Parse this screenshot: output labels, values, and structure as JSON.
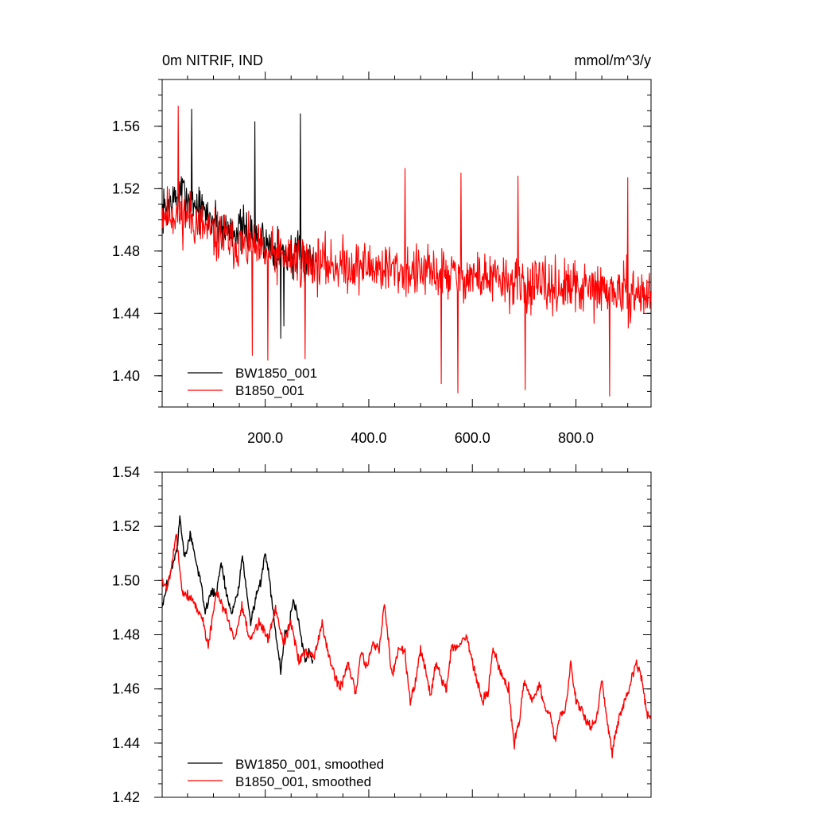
{
  "chart_data": [
    {
      "type": "line",
      "title_left": "0m NITRIF, IND",
      "title_right": "mmol/m^3/y",
      "xlim": [
        1,
        945
      ],
      "ylim": [
        1.38,
        1.59
      ],
      "x_ticks": [
        200,
        400,
        600,
        800
      ],
      "x_tick_labels": [
        "200.0",
        "400.0",
        "600.0",
        "800.0"
      ],
      "y_ticks": [
        1.4,
        1.44,
        1.48,
        1.52,
        1.56
      ],
      "y_tick_labels": [
        "1.40",
        "1.44",
        "1.48",
        "1.52",
        "1.56"
      ],
      "legend_position": "bottom-left",
      "series": [
        {
          "name": "BW1850_001",
          "color": "#000000",
          "x_range": [
            1,
            292
          ],
          "anchors": [
            [
              1,
              1.505
            ],
            [
              40,
              1.518
            ],
            [
              80,
              1.505
            ],
            [
              120,
              1.495
            ],
            [
              160,
              1.493
            ],
            [
              200,
              1.486
            ],
            [
              240,
              1.478
            ],
            [
              292,
              1.474
            ]
          ],
          "noise": 0.021,
          "seed": 7,
          "spikes": [
            [
              58,
              1.571
            ],
            [
              180,
              1.563
            ],
            [
              268,
              1.568
            ],
            [
              230,
              1.424
            ],
            [
              236,
              1.432
            ]
          ]
        },
        {
          "name": "B1850_001",
          "color": "#ff0000",
          "x_range": [
            1,
            945
          ],
          "anchors": [
            [
              1,
              1.505
            ],
            [
              50,
              1.503
            ],
            [
              100,
              1.49
            ],
            [
              200,
              1.478
            ],
            [
              300,
              1.472
            ],
            [
              400,
              1.47
            ],
            [
              500,
              1.466
            ],
            [
              600,
              1.464
            ],
            [
              700,
              1.458
            ],
            [
              800,
              1.456
            ],
            [
              945,
              1.452
            ]
          ],
          "noise": 0.025,
          "seed": 11,
          "spikes": [
            [
              32,
              1.573
            ],
            [
              175,
              1.413
            ],
            [
              205,
              1.41
            ],
            [
              277,
              1.411
            ],
            [
              540,
              1.395
            ],
            [
              572,
              1.389
            ],
            [
              702,
              1.391
            ],
            [
              865,
              1.387
            ],
            [
              470,
              1.533
            ],
            [
              578,
              1.53
            ],
            [
              688,
              1.528
            ],
            [
              900,
              1.527
            ]
          ]
        }
      ]
    },
    {
      "type": "line",
      "xlim": [
        1,
        945
      ],
      "ylim": [
        1.42,
        1.54
      ],
      "x_ticks": [
        200,
        400,
        600,
        800
      ],
      "y_ticks": [
        1.42,
        1.44,
        1.46,
        1.48,
        1.5,
        1.52,
        1.54
      ],
      "y_tick_labels": [
        "1.42",
        "1.44",
        "1.46",
        "1.48",
        "1.50",
        "1.52",
        "1.54"
      ],
      "legend_position": "bottom-left",
      "series": [
        {
          "name": "BW1850_001, smoothed",
          "color": "#000000",
          "x_range": [
            1,
            292
          ],
          "points": [
            [
              1,
              1.49
            ],
            [
              10,
              1.498
            ],
            [
              20,
              1.505
            ],
            [
              30,
              1.512
            ],
            [
              35,
              1.523
            ],
            [
              45,
              1.508
            ],
            [
              55,
              1.517
            ],
            [
              65,
              1.508
            ],
            [
              75,
              1.5
            ],
            [
              85,
              1.488
            ],
            [
              95,
              1.496
            ],
            [
              105,
              1.495
            ],
            [
              115,
              1.507
            ],
            [
              125,
              1.495
            ],
            [
              135,
              1.488
            ],
            [
              148,
              1.496
            ],
            [
              156,
              1.51
            ],
            [
              164,
              1.495
            ],
            [
              172,
              1.485
            ],
            [
              182,
              1.494
            ],
            [
              192,
              1.5
            ],
            [
              200,
              1.511
            ],
            [
              208,
              1.502
            ],
            [
              214,
              1.49
            ],
            [
              222,
              1.478
            ],
            [
              230,
              1.467
            ],
            [
              238,
              1.48
            ],
            [
              246,
              1.483
            ],
            [
              254,
              1.493
            ],
            [
              262,
              1.488
            ],
            [
              270,
              1.478
            ],
            [
              278,
              1.47
            ],
            [
              285,
              1.475
            ],
            [
              292,
              1.47
            ]
          ],
          "noise": 0.0025,
          "seed": 3
        },
        {
          "name": "B1850_001, smoothed",
          "color": "#ff0000",
          "x_range": [
            1,
            945
          ],
          "points": [
            [
              1,
              1.5
            ],
            [
              10,
              1.497
            ],
            [
              20,
              1.507
            ],
            [
              28,
              1.517
            ],
            [
              40,
              1.496
            ],
            [
              60,
              1.493
            ],
            [
              80,
              1.485
            ],
            [
              90,
              1.476
            ],
            [
              105,
              1.495
            ],
            [
              125,
              1.488
            ],
            [
              140,
              1.478
            ],
            [
              155,
              1.49
            ],
            [
              170,
              1.478
            ],
            [
              190,
              1.485
            ],
            [
              205,
              1.478
            ],
            [
              220,
              1.49
            ],
            [
              235,
              1.477
            ],
            [
              250,
              1.485
            ],
            [
              265,
              1.47
            ],
            [
              275,
              1.473
            ],
            [
              295,
              1.472
            ],
            [
              310,
              1.484
            ],
            [
              325,
              1.47
            ],
            [
              345,
              1.46
            ],
            [
              360,
              1.47
            ],
            [
              375,
              1.458
            ],
            [
              385,
              1.474
            ],
            [
              395,
              1.468
            ],
            [
              408,
              1.476
            ],
            [
              420,
              1.475
            ],
            [
              430,
              1.491
            ],
            [
              445,
              1.465
            ],
            [
              460,
              1.476
            ],
            [
              470,
              1.473
            ],
            [
              480,
              1.455
            ],
            [
              490,
              1.462
            ],
            [
              500,
              1.475
            ],
            [
              510,
              1.466
            ],
            [
              520,
              1.458
            ],
            [
              530,
              1.47
            ],
            [
              540,
              1.463
            ],
            [
              550,
              1.46
            ],
            [
              560,
              1.476
            ],
            [
              570,
              1.475
            ],
            [
              580,
              1.478
            ],
            [
              590,
              1.479
            ],
            [
              600,
              1.47
            ],
            [
              610,
              1.462
            ],
            [
              620,
              1.455
            ],
            [
              630,
              1.458
            ],
            [
              640,
              1.475
            ],
            [
              655,
              1.466
            ],
            [
              670,
              1.46
            ],
            [
              680,
              1.44
            ],
            [
              690,
              1.447
            ],
            [
              700,
              1.463
            ],
            [
              715,
              1.456
            ],
            [
              730,
              1.462
            ],
            [
              740,
              1.452
            ],
            [
              750,
              1.451
            ],
            [
              760,
              1.441
            ],
            [
              770,
              1.45
            ],
            [
              780,
              1.452
            ],
            [
              790,
              1.47
            ],
            [
              800,
              1.455
            ],
            [
              810,
              1.453
            ],
            [
              820,
              1.448
            ],
            [
              830,
              1.446
            ],
            [
              840,
              1.45
            ],
            [
              850,
              1.464
            ],
            [
              860,
              1.448
            ],
            [
              870,
              1.437
            ],
            [
              880,
              1.447
            ],
            [
              895,
              1.456
            ],
            [
              905,
              1.462
            ],
            [
              915,
              1.47
            ],
            [
              925,
              1.467
            ],
            [
              935,
              1.453
            ],
            [
              945,
              1.448
            ]
          ],
          "noise": 0.003,
          "seed": 5
        }
      ]
    }
  ]
}
